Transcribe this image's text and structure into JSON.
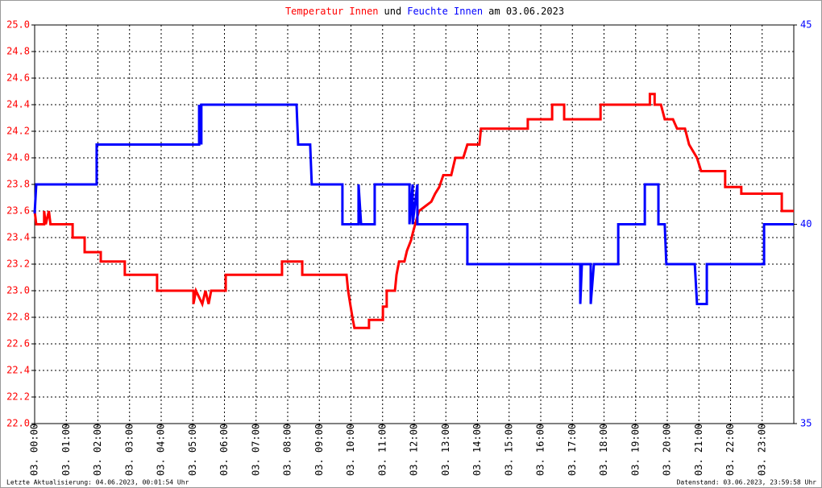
{
  "chart_data": {
    "type": "line",
    "title_connector": "und",
    "title_date": "am 03.06.2023",
    "footer_left": "Letzte Aktualisierung: 04.06.2023, 00:01:54 Uhr",
    "footer_right": "Datenstand: 03.06.2023, 23:59:58 Uhr",
    "grid": true,
    "xlim": [
      0,
      24
    ],
    "xticks": [
      {
        "value": 0,
        "label": "03. 00:00"
      },
      {
        "value": 1,
        "label": "03. 01:00"
      },
      {
        "value": 2,
        "label": "03. 02:00"
      },
      {
        "value": 3,
        "label": "03. 03:00"
      },
      {
        "value": 4,
        "label": "03. 04:00"
      },
      {
        "value": 5,
        "label": "03. 05:00"
      },
      {
        "value": 6,
        "label": "03. 06:00"
      },
      {
        "value": 7,
        "label": "03. 07:00"
      },
      {
        "value": 8,
        "label": "03. 08:00"
      },
      {
        "value": 9,
        "label": "03. 09:00"
      },
      {
        "value": 10,
        "label": "03. 10:00"
      },
      {
        "value": 11,
        "label": "03. 11:00"
      },
      {
        "value": 12,
        "label": "03. 12:00"
      },
      {
        "value": 13,
        "label": "03. 13:00"
      },
      {
        "value": 14,
        "label": "03. 14:00"
      },
      {
        "value": 15,
        "label": "03. 15:00"
      },
      {
        "value": 16,
        "label": "03. 16:00"
      },
      {
        "value": 17,
        "label": "03. 17:00"
      },
      {
        "value": 18,
        "label": "03. 18:00"
      },
      {
        "value": 19,
        "label": "03. 19:00"
      },
      {
        "value": 20,
        "label": "03. 20:00"
      },
      {
        "value": 21,
        "label": "03. 21:00"
      },
      {
        "value": 22,
        "label": "03. 22:00"
      },
      {
        "value": 23,
        "label": "03. 23:00"
      }
    ],
    "ylim": [
      22,
      25
    ],
    "yticks": [
      {
        "value": 22,
        "label": "22.0"
      },
      22.2,
      22.4,
      22.6,
      22.8,
      {
        "value": 23,
        "label": "23.0"
      },
      23.2,
      23.4,
      23.6,
      23.8,
      {
        "value": 24,
        "label": "24.0"
      },
      24.2,
      24.4,
      24.6,
      24.8,
      {
        "value": 25,
        "label": "25.0"
      }
    ],
    "y2lim": [
      35,
      45
    ],
    "y2ticks": [
      35,
      40,
      45
    ],
    "series": [
      {
        "name": "Temperatur Innen",
        "color": "#ff0000",
        "x": [
          0,
          0.05,
          0.3,
          0.3,
          0.35,
          0.45,
          0.5,
          1.2,
          1.2,
          1.58,
          1.58,
          2.09,
          2.09,
          2.85,
          2.85,
          3.87,
          3.87,
          5.02,
          5.02,
          5.1,
          5.3,
          5.4,
          5.5,
          5.58,
          6.04,
          6.04,
          7.82,
          7.82,
          8.46,
          8.46,
          9.86,
          9.91,
          9.99,
          10.06,
          10.11,
          10.57,
          10.57,
          11.01,
          11.01,
          11.13,
          11.13,
          11.39,
          11.44,
          11.52,
          11.69,
          11.77,
          11.9,
          11.95,
          12.03,
          12.15,
          12.54,
          12.66,
          12.79,
          12.92,
          13.17,
          13.3,
          13.55,
          13.68,
          14.06,
          14.11,
          15.59,
          15.59,
          16.36,
          16.36,
          16.74,
          16.74,
          17.89,
          17.89,
          19.45,
          19.45,
          19.6,
          19.6,
          19.8,
          19.92,
          20.18,
          20.31,
          20.56,
          20.69,
          20.94,
          21.07,
          21.83,
          21.83,
          22.34,
          22.34,
          23.62,
          23.62,
          24
        ],
        "values": [
          23.6,
          23.5,
          23.5,
          23.6,
          23.5,
          23.6,
          23.5,
          23.5,
          23.4,
          23.4,
          23.29,
          23.29,
          23.22,
          23.22,
          23.12,
          23.12,
          23.0,
          23.0,
          22.9,
          23.0,
          22.9,
          23.0,
          22.9,
          23.0,
          23.0,
          23.12,
          23.12,
          23.22,
          23.22,
          23.12,
          23.12,
          23.0,
          22.88,
          22.78,
          22.72,
          22.72,
          22.78,
          22.78,
          22.88,
          22.88,
          23.0,
          23.0,
          23.12,
          23.22,
          23.22,
          23.3,
          23.38,
          23.43,
          23.5,
          23.6,
          23.67,
          23.73,
          23.78,
          23.87,
          23.87,
          24.0,
          24.0,
          24.1,
          24.1,
          24.22,
          24.22,
          24.29,
          24.29,
          24.4,
          24.4,
          24.29,
          24.29,
          24.4,
          24.4,
          24.48,
          24.48,
          24.4,
          24.4,
          24.29,
          24.29,
          24.22,
          24.22,
          24.1,
          24.0,
          23.9,
          23.9,
          23.78,
          23.78,
          23.73,
          23.73,
          23.6,
          23.6
        ]
      },
      {
        "name": "Feuchte Innen",
        "color": "#0000ff",
        "axis": "y2",
        "x": [
          0,
          0.05,
          1.96,
          1.96,
          5.2,
          5.2,
          5.24,
          5.24,
          5.27,
          5.27,
          8.28,
          8.33,
          8.71,
          8.76,
          9.73,
          9.73,
          10.24,
          10.24,
          10.32,
          10.75,
          10.75,
          11.85,
          11.85,
          11.95,
          11.95,
          12.1,
          12.1,
          13.68,
          13.68,
          17.25,
          17.25,
          17.3,
          17.58,
          17.58,
          17.68,
          18.45,
          18.45,
          19.29,
          19.29,
          19.72,
          19.72,
          19.92,
          19.97,
          20.87,
          20.94,
          21.25,
          21.25,
          23.06,
          23.06,
          24
        ],
        "values": [
          40.27,
          41,
          41,
          42,
          42,
          43,
          42,
          43,
          42,
          43,
          43,
          42,
          42,
          41,
          41,
          40,
          40,
          41,
          40,
          40,
          41,
          41,
          40,
          41,
          40,
          41,
          40,
          40,
          39,
          39,
          38,
          39,
          39,
          38,
          39,
          39,
          40,
          40,
          41,
          41,
          40,
          40,
          39,
          39,
          38,
          38,
          39,
          39,
          40,
          40
        ]
      }
    ]
  }
}
